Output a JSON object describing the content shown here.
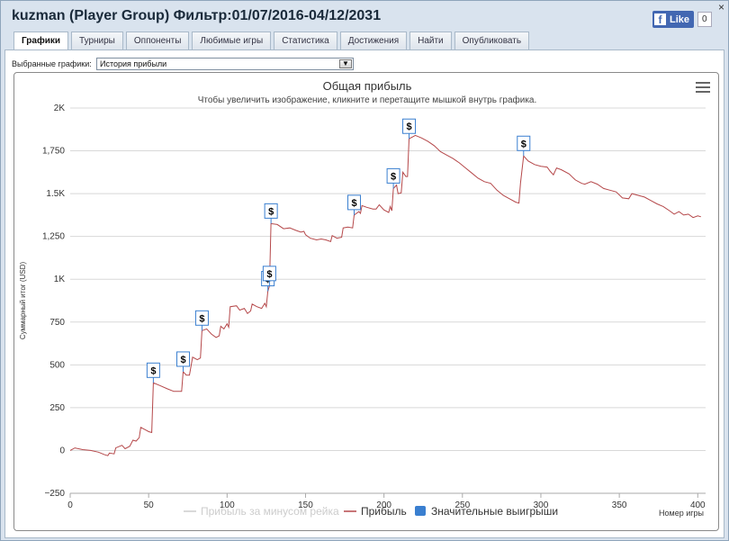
{
  "window": {
    "title": "kuzman (Player Group) Фильтр:01/07/2016-04/12/2031",
    "close_label": "×",
    "fb_like_label": "Like",
    "fb_like_letter": "f",
    "fb_count": "0"
  },
  "tabs": [
    "Графики",
    "Турниры",
    "Оппоненты",
    "Любимые игры",
    "Статистика",
    "Достижения",
    "Найти",
    "Опубликовать"
  ],
  "active_tab": "Графики",
  "selector": {
    "label": "Выбранные графики:",
    "value": "История прибыли",
    "arrow": "▼"
  },
  "chart_data": {
    "type": "line",
    "title": "Общая прибыль",
    "subtitle": "Чтобы увеличить изображение, кликните и перетащите мышкой внутрь графика.",
    "xlabel": "Номер игры",
    "ylabel": "Суммарный итог (USD)",
    "xlim": [
      0,
      405
    ],
    "ylim": [
      -250,
      2000
    ],
    "x_ticks": [
      0,
      50,
      100,
      150,
      200,
      250,
      300,
      350,
      400
    ],
    "y_ticks": [
      {
        "value": -250,
        "label": "−250"
      },
      {
        "value": 0,
        "label": "0"
      },
      {
        "value": 250,
        "label": "250"
      },
      {
        "value": 500,
        "label": "500"
      },
      {
        "value": 750,
        "label": "750"
      },
      {
        "value": 1000,
        "label": "1K"
      },
      {
        "value": 1250,
        "label": "1,250"
      },
      {
        "value": 1500,
        "label": "1.5K"
      },
      {
        "value": 1750,
        "label": "1,750"
      },
      {
        "value": 2000,
        "label": "2K"
      }
    ],
    "grid": "horizontal",
    "legend_position": "bottom",
    "series": [
      {
        "name": "Прибыль",
        "color": "#b5484a",
        "points": [
          [
            0,
            0
          ],
          [
            3,
            15
          ],
          [
            8,
            5
          ],
          [
            13,
            0
          ],
          [
            18,
            -10
          ],
          [
            22,
            -25
          ],
          [
            24,
            -30
          ],
          [
            25,
            -15
          ],
          [
            28,
            -20
          ],
          [
            29,
            15
          ],
          [
            33,
            30
          ],
          [
            35,
            10
          ],
          [
            38,
            25
          ],
          [
            40,
            60
          ],
          [
            42,
            55
          ],
          [
            44,
            75
          ],
          [
            45,
            135
          ],
          [
            48,
            120
          ],
          [
            50,
            110
          ],
          [
            52,
            105
          ],
          [
            53,
            395
          ],
          [
            57,
            380
          ],
          [
            62,
            360
          ],
          [
            66,
            345
          ],
          [
            71,
            345
          ],
          [
            72,
            460
          ],
          [
            74,
            440
          ],
          [
            76,
            440
          ],
          [
            78,
            545
          ],
          [
            81,
            530
          ],
          [
            83,
            540
          ],
          [
            84,
            700
          ],
          [
            87,
            710
          ],
          [
            90,
            680
          ],
          [
            93,
            660
          ],
          [
            95,
            670
          ],
          [
            96,
            725
          ],
          [
            98,
            710
          ],
          [
            100,
            740
          ],
          [
            101,
            720
          ],
          [
            102,
            840
          ],
          [
            106,
            845
          ],
          [
            108,
            820
          ],
          [
            111,
            830
          ],
          [
            113,
            800
          ],
          [
            115,
            815
          ],
          [
            116,
            855
          ],
          [
            119,
            840
          ],
          [
            122,
            830
          ],
          [
            124,
            860
          ],
          [
            125,
            840
          ],
          [
            126,
            930
          ],
          [
            127,
            960
          ],
          [
            128,
            1325
          ],
          [
            132,
            1320
          ],
          [
            136,
            1295
          ],
          [
            140,
            1300
          ],
          [
            144,
            1285
          ],
          [
            147,
            1275
          ],
          [
            149,
            1280
          ],
          [
            150,
            1260
          ],
          [
            153,
            1240
          ],
          [
            157,
            1230
          ],
          [
            160,
            1235
          ],
          [
            163,
            1230
          ],
          [
            166,
            1220
          ],
          [
            167,
            1255
          ],
          [
            170,
            1240
          ],
          [
            173,
            1245
          ],
          [
            174,
            1300
          ],
          [
            177,
            1305
          ],
          [
            180,
            1300
          ],
          [
            181,
            1375
          ],
          [
            184,
            1395
          ],
          [
            185,
            1385
          ],
          [
            186,
            1430
          ],
          [
            189,
            1420
          ],
          [
            193,
            1410
          ],
          [
            195,
            1410
          ],
          [
            197,
            1435
          ],
          [
            200,
            1405
          ],
          [
            203,
            1390
          ],
          [
            204,
            1425
          ],
          [
            205,
            1400
          ],
          [
            206,
            1530
          ],
          [
            208,
            1550
          ],
          [
            209,
            1500
          ],
          [
            211,
            1505
          ],
          [
            212,
            1625
          ],
          [
            214,
            1600
          ],
          [
            215,
            1600
          ],
          [
            216,
            1820
          ],
          [
            220,
            1840
          ],
          [
            224,
            1825
          ],
          [
            228,
            1805
          ],
          [
            232,
            1780
          ],
          [
            236,
            1745
          ],
          [
            240,
            1725
          ],
          [
            244,
            1705
          ],
          [
            248,
            1680
          ],
          [
            252,
            1650
          ],
          [
            256,
            1620
          ],
          [
            260,
            1590
          ],
          [
            264,
            1570
          ],
          [
            268,
            1560
          ],
          [
            272,
            1520
          ],
          [
            276,
            1490
          ],
          [
            280,
            1470
          ],
          [
            284,
            1450
          ],
          [
            286,
            1445
          ],
          [
            287,
            1560
          ],
          [
            289,
            1720
          ],
          [
            292,
            1690
          ],
          [
            296,
            1670
          ],
          [
            300,
            1660
          ],
          [
            304,
            1655
          ],
          [
            306,
            1630
          ],
          [
            308,
            1610
          ],
          [
            310,
            1650
          ],
          [
            313,
            1640
          ],
          [
            318,
            1615
          ],
          [
            322,
            1580
          ],
          [
            326,
            1560
          ],
          [
            328,
            1555
          ],
          [
            332,
            1570
          ],
          [
            336,
            1555
          ],
          [
            340,
            1530
          ],
          [
            344,
            1520
          ],
          [
            348,
            1510
          ],
          [
            352,
            1475
          ],
          [
            356,
            1470
          ],
          [
            358,
            1500
          ],
          [
            362,
            1490
          ],
          [
            366,
            1480
          ],
          [
            370,
            1460
          ],
          [
            374,
            1440
          ],
          [
            378,
            1425
          ],
          [
            382,
            1400
          ],
          [
            385,
            1380
          ],
          [
            388,
            1395
          ],
          [
            391,
            1375
          ],
          [
            394,
            1380
          ],
          [
            397,
            1360
          ],
          [
            400,
            1370
          ],
          [
            402,
            1365
          ]
        ]
      }
    ],
    "big_wins": [
      {
        "x": 53,
        "y": 395,
        "label": "$"
      },
      {
        "x": 72,
        "y": 460,
        "label": "$"
      },
      {
        "x": 84,
        "y": 700,
        "label": "$"
      },
      {
        "x": 126,
        "y": 930,
        "label": "$"
      },
      {
        "x": 127,
        "y": 960,
        "label": "$"
      },
      {
        "x": 128,
        "y": 1325,
        "label": "$"
      },
      {
        "x": 181,
        "y": 1375,
        "label": "$"
      },
      {
        "x": 206,
        "y": 1530,
        "label": "$"
      },
      {
        "x": 216,
        "y": 1820,
        "label": "$"
      },
      {
        "x": 289,
        "y": 1720,
        "label": "$"
      }
    ],
    "legend": [
      {
        "label": "Прибыль за минусом рейка",
        "color": "#cccccc",
        "symbol": "line",
        "muted": true
      },
      {
        "label": "Прибыль",
        "color": "#b5484a",
        "symbol": "line",
        "muted": false
      },
      {
        "label": "Значительные выигрыши",
        "color": "#3a7fd0",
        "symbol": "box",
        "muted": false
      }
    ]
  }
}
